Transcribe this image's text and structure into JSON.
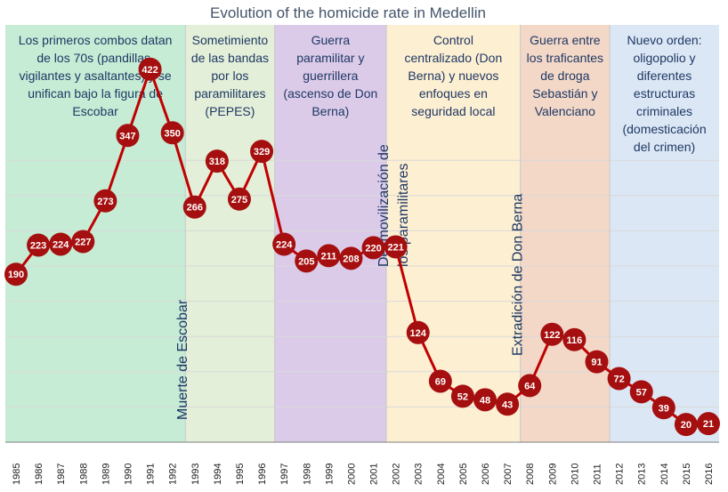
{
  "chart_data": {
    "type": "line",
    "title": "Evolution of the homicide rate in Medellin",
    "xlabel": "",
    "ylabel": "",
    "x": [
      "1985",
      "1986",
      "1987",
      "1988",
      "1989",
      "1990",
      "1991",
      "1992",
      "1993",
      "1994",
      "1995",
      "1996",
      "1997",
      "1998",
      "1999",
      "2000",
      "2001",
      "2002",
      "2003",
      "2004",
      "2005",
      "2006",
      "2007",
      "2008",
      "2009",
      "2010",
      "2011",
      "2012",
      "2013",
      "2014",
      "2015",
      "2016"
    ],
    "series": [
      {
        "name": "Homicide rate",
        "values": [
          190,
          223,
          224,
          227,
          273,
          347,
          422,
          350,
          266,
          318,
          275,
          329,
          224,
          205,
          211,
          208,
          220,
          221,
          124,
          69,
          52,
          48,
          43,
          64,
          122,
          116,
          91,
          72,
          57,
          39,
          20,
          21
        ]
      }
    ],
    "ylim": [
      0,
      460
    ],
    "grid": true,
    "colors": {
      "line": "#c00000",
      "marker": "#a50f0f",
      "label": "#ffffff",
      "grid": "#d9d9d9"
    },
    "eras": [
      {
        "start": "1985",
        "end": "1993",
        "color": "#c6ecd5",
        "lines": [
          "Los primeros combos datan",
          "de los 70s (pandillas,",
          "vigilantes y asaltantes) y se",
          "unifican bajo la figura de",
          "Escobar"
        ]
      },
      {
        "start": "1993",
        "end": "1997",
        "color": "#e3efd8",
        "lines": [
          "Sometimiento",
          "de las bandas",
          "por los",
          "paramilitares",
          "(PEPES)"
        ]
      },
      {
        "start": "1997",
        "end": "2002",
        "color": "#dbcbe9",
        "lines": [
          "Guerra",
          "paramilitar y",
          "guerrillera",
          "(ascenso de Don",
          "Berna)"
        ]
      },
      {
        "start": "2002",
        "end": "2008",
        "color": "#fdefd2",
        "lines": [
          "Control",
          "centralizado (Don",
          "Berna) y nuevos",
          "enfoques en",
          "seguridad local"
        ]
      },
      {
        "start": "2008",
        "end": "2012",
        "color": "#f3d8c8",
        "lines": [
          "Guerra entre",
          "los traficantes",
          "de droga",
          "Sebastián y",
          "Valenciano"
        ]
      },
      {
        "start": "2012",
        "end": "2016",
        "color": "#dbe7f4",
        "lines": [
          "Nuevo orden:",
          "oligopolio y",
          "diferentes",
          "estructuras",
          "criminales",
          "(domesticación",
          "del crimen)"
        ]
      }
    ],
    "annotations": [
      {
        "year": "1993",
        "lines": [
          "Muerte de Escobar"
        ]
      },
      {
        "year": "2002",
        "lines": [
          "Desmovilización de",
          "los paramilitares"
        ]
      },
      {
        "year": "2008",
        "lines": [
          "Extradición de Don Berna"
        ]
      }
    ]
  }
}
